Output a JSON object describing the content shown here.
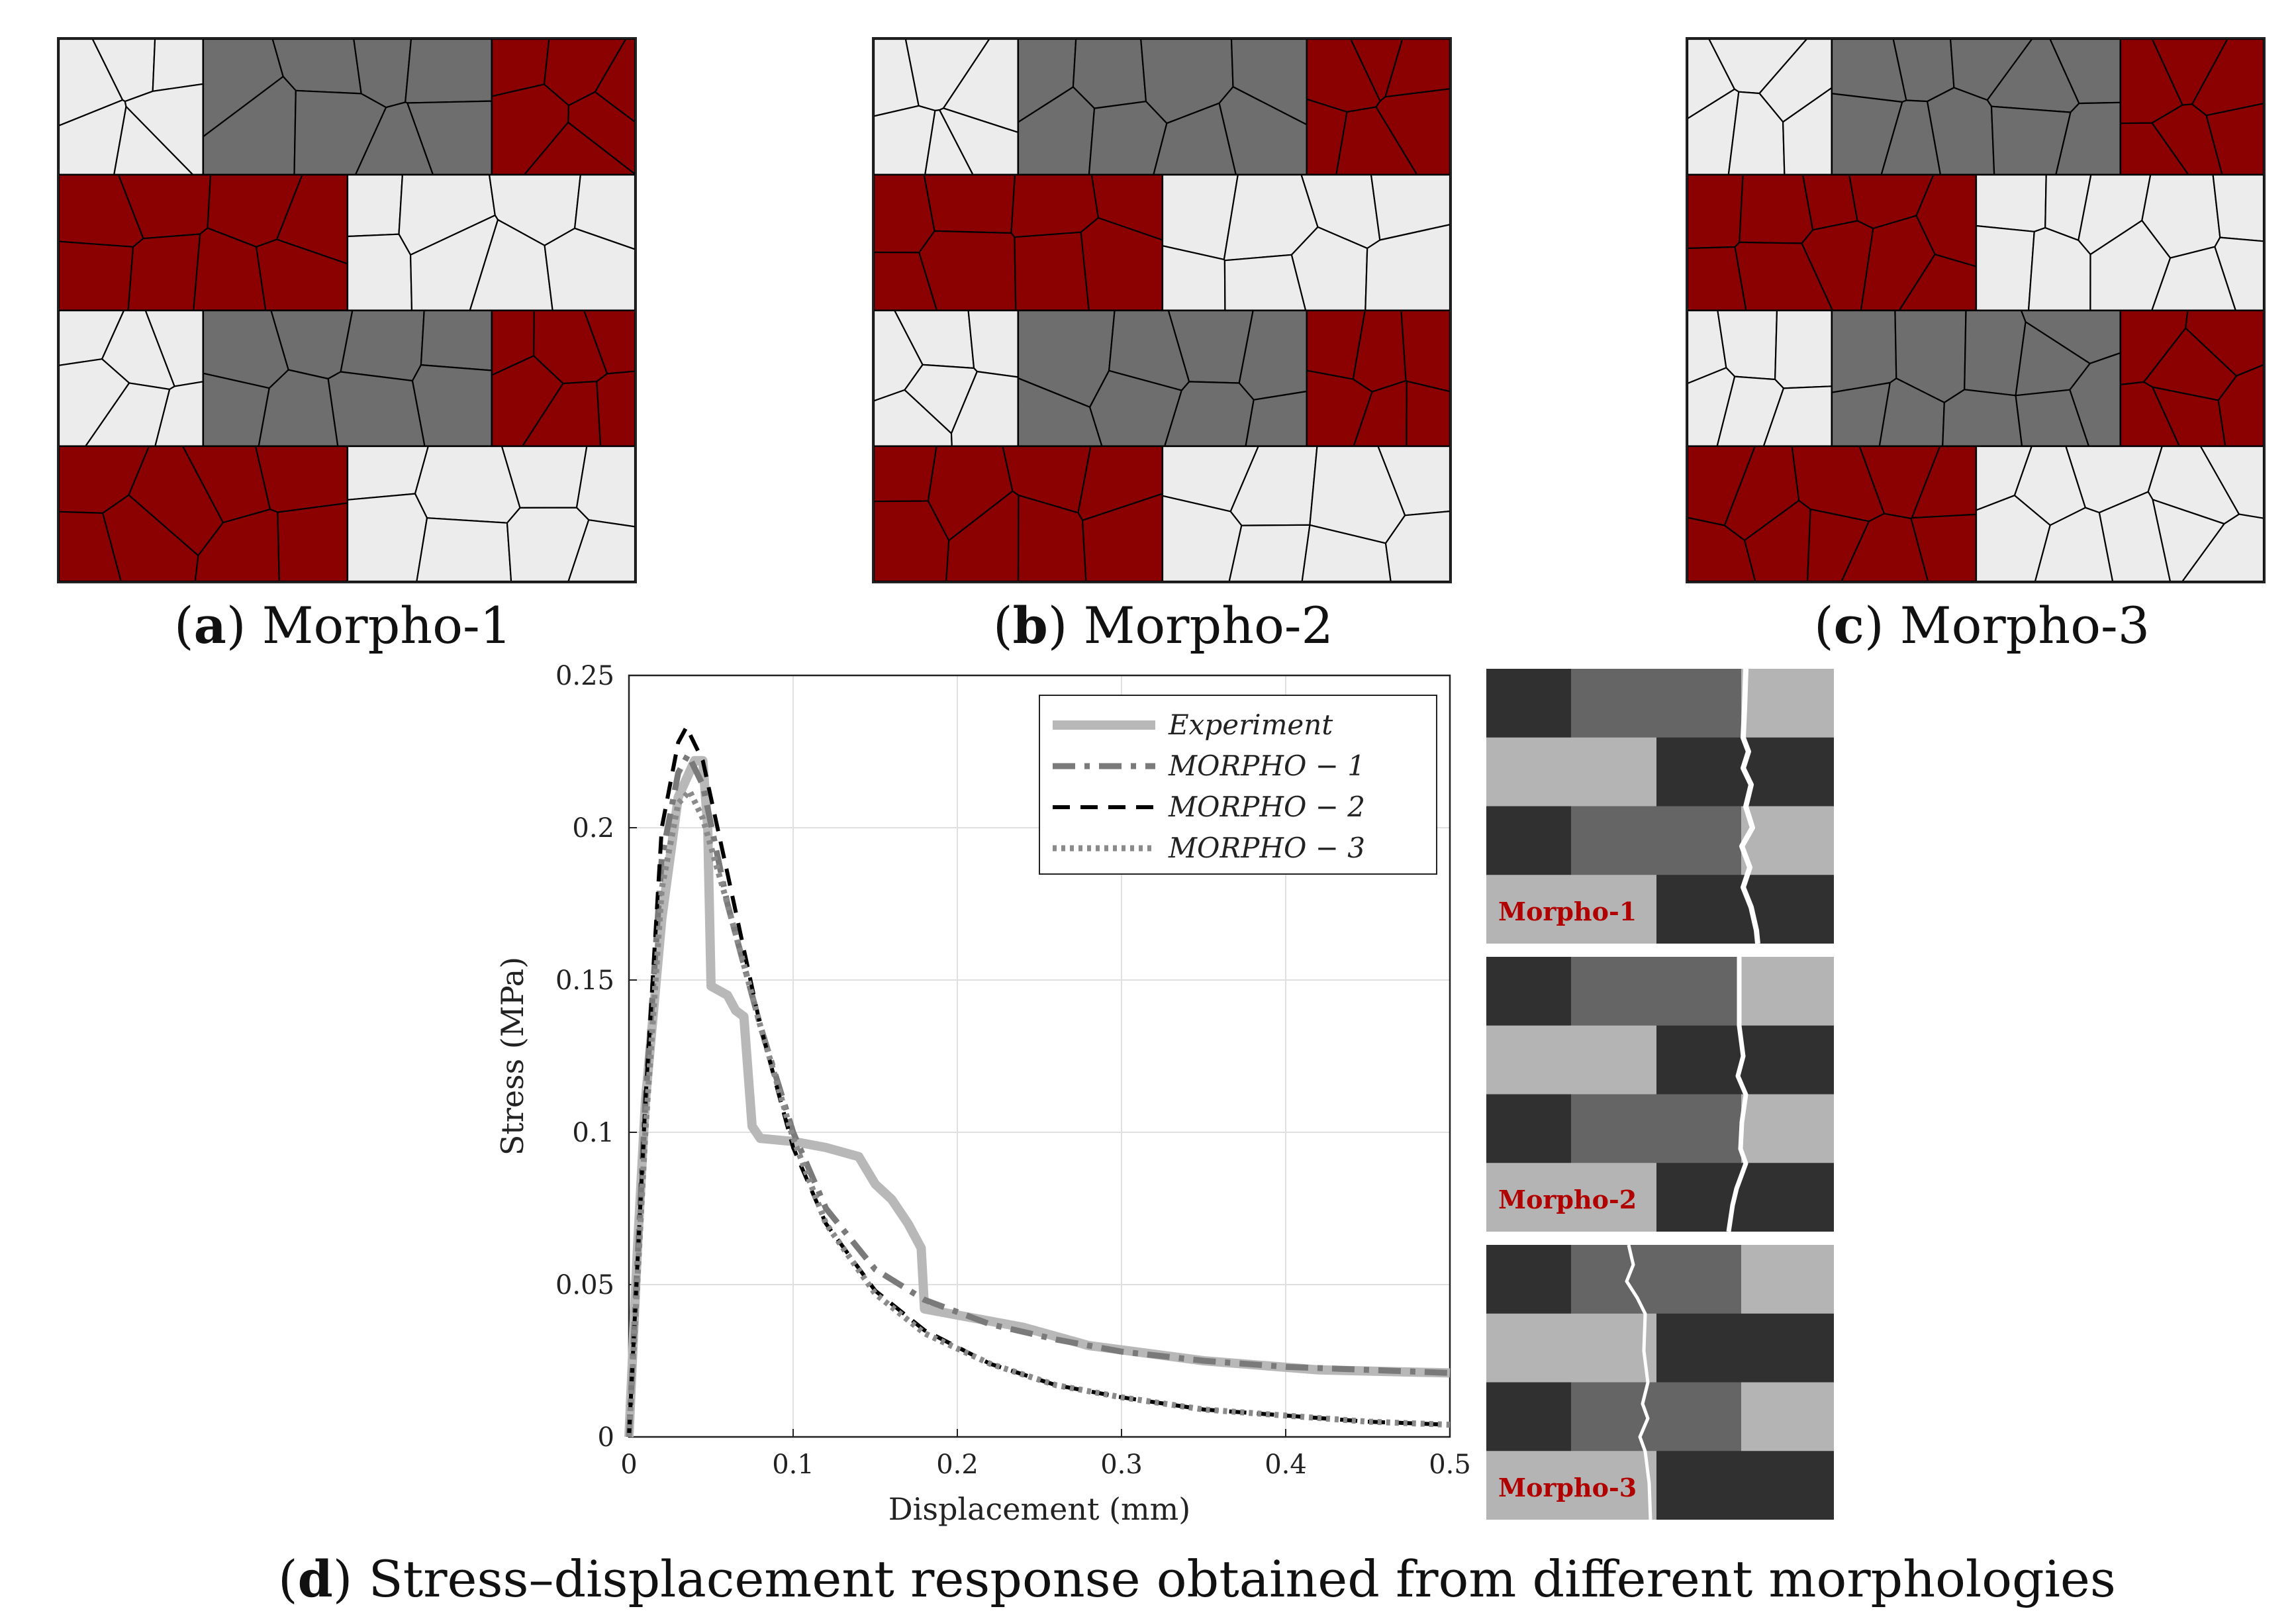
{
  "colors": {
    "dark_red": "#8b0000",
    "dark_gray": "#6e6e6e",
    "light_gray": "#ececec",
    "experiment": "#b8b8b8",
    "morpho1": "#7a7a7a",
    "morpho2": "#000000",
    "morpho3": "#8a8a8a",
    "crack_dark": "#303030",
    "crack_mid": "#656565",
    "crack_light": "#b4b4b4",
    "crack_label": "#b00000"
  },
  "panels": [
    {
      "letter": "a",
      "title": "Morpho-1"
    },
    {
      "letter": "b",
      "title": "Morpho-2"
    },
    {
      "letter": "c",
      "title": "Morpho-3"
    }
  ],
  "panel_d": {
    "letter": "d",
    "caption": "Stress–displacement response obtained from different morphologies"
  },
  "crack_labels": [
    "Morpho-1",
    "Morpho-2",
    "Morpho-3"
  ],
  "chart_data": {
    "type": "line",
    "title": "",
    "xlabel": "Displacement (mm)",
    "ylabel": "Stress (MPa)",
    "xlim": [
      0,
      0.5
    ],
    "ylim": [
      0,
      0.25
    ],
    "grid": true,
    "legend_position": "top-right",
    "xticks": [
      0,
      0.1,
      0.2,
      0.3,
      0.4,
      0.5
    ],
    "xtick_labels": [
      "0",
      "0.1",
      "0.2",
      "0.3",
      "0.4",
      "0.5"
    ],
    "yticks": [
      0,
      0.05,
      0.1,
      0.15,
      0.2,
      0.25
    ],
    "ytick_labels": [
      "0",
      "0.05",
      "0.1",
      "0.15",
      "0.2",
      "0.25"
    ],
    "series": [
      {
        "name": "Experiment",
        "style": "solid",
        "x": [
          0,
          0.005,
          0.01,
          0.02,
          0.03,
          0.04,
          0.045,
          0.048,
          0.05,
          0.06,
          0.065,
          0.07,
          0.075,
          0.08,
          0.1,
          0.12,
          0.14,
          0.15,
          0.16,
          0.17,
          0.178,
          0.18,
          0.2,
          0.24,
          0.28,
          0.35,
          0.42,
          0.5
        ],
        "y": [
          0,
          0.06,
          0.11,
          0.17,
          0.21,
          0.222,
          0.222,
          0.2,
          0.148,
          0.145,
          0.14,
          0.138,
          0.102,
          0.098,
          0.097,
          0.095,
          0.092,
          0.083,
          0.078,
          0.07,
          0.062,
          0.042,
          0.04,
          0.036,
          0.03,
          0.025,
          0.022,
          0.021
        ]
      },
      {
        "name": "MORPHO − 1",
        "style": "dashdot",
        "x": [
          0,
          0.01,
          0.02,
          0.03,
          0.036,
          0.045,
          0.06,
          0.08,
          0.1,
          0.12,
          0.15,
          0.18,
          0.22,
          0.26,
          0.3,
          0.35,
          0.4,
          0.45,
          0.5
        ],
        "y": [
          0,
          0.11,
          0.19,
          0.218,
          0.224,
          0.214,
          0.175,
          0.135,
          0.1,
          0.075,
          0.055,
          0.045,
          0.037,
          0.032,
          0.028,
          0.025,
          0.023,
          0.022,
          0.021
        ]
      },
      {
        "name": "MORPHO − 2",
        "style": "dashed",
        "x": [
          0,
          0.01,
          0.02,
          0.03,
          0.035,
          0.045,
          0.06,
          0.08,
          0.1,
          0.12,
          0.15,
          0.18,
          0.22,
          0.26,
          0.3,
          0.35,
          0.4,
          0.45,
          0.5
        ],
        "y": [
          0,
          0.11,
          0.2,
          0.228,
          0.233,
          0.222,
          0.185,
          0.135,
          0.095,
          0.07,
          0.048,
          0.035,
          0.024,
          0.017,
          0.013,
          0.009,
          0.007,
          0.005,
          0.004
        ]
      },
      {
        "name": "MORPHO − 3",
        "style": "dotted",
        "x": [
          0,
          0.01,
          0.02,
          0.03,
          0.037,
          0.045,
          0.06,
          0.08,
          0.1,
          0.12,
          0.15,
          0.18,
          0.22,
          0.26,
          0.3,
          0.35,
          0.4,
          0.45,
          0.5
        ],
        "y": [
          0,
          0.1,
          0.18,
          0.208,
          0.212,
          0.203,
          0.175,
          0.135,
          0.098,
          0.07,
          0.047,
          0.034,
          0.024,
          0.017,
          0.013,
          0.009,
          0.007,
          0.005,
          0.004
        ]
      }
    ]
  }
}
